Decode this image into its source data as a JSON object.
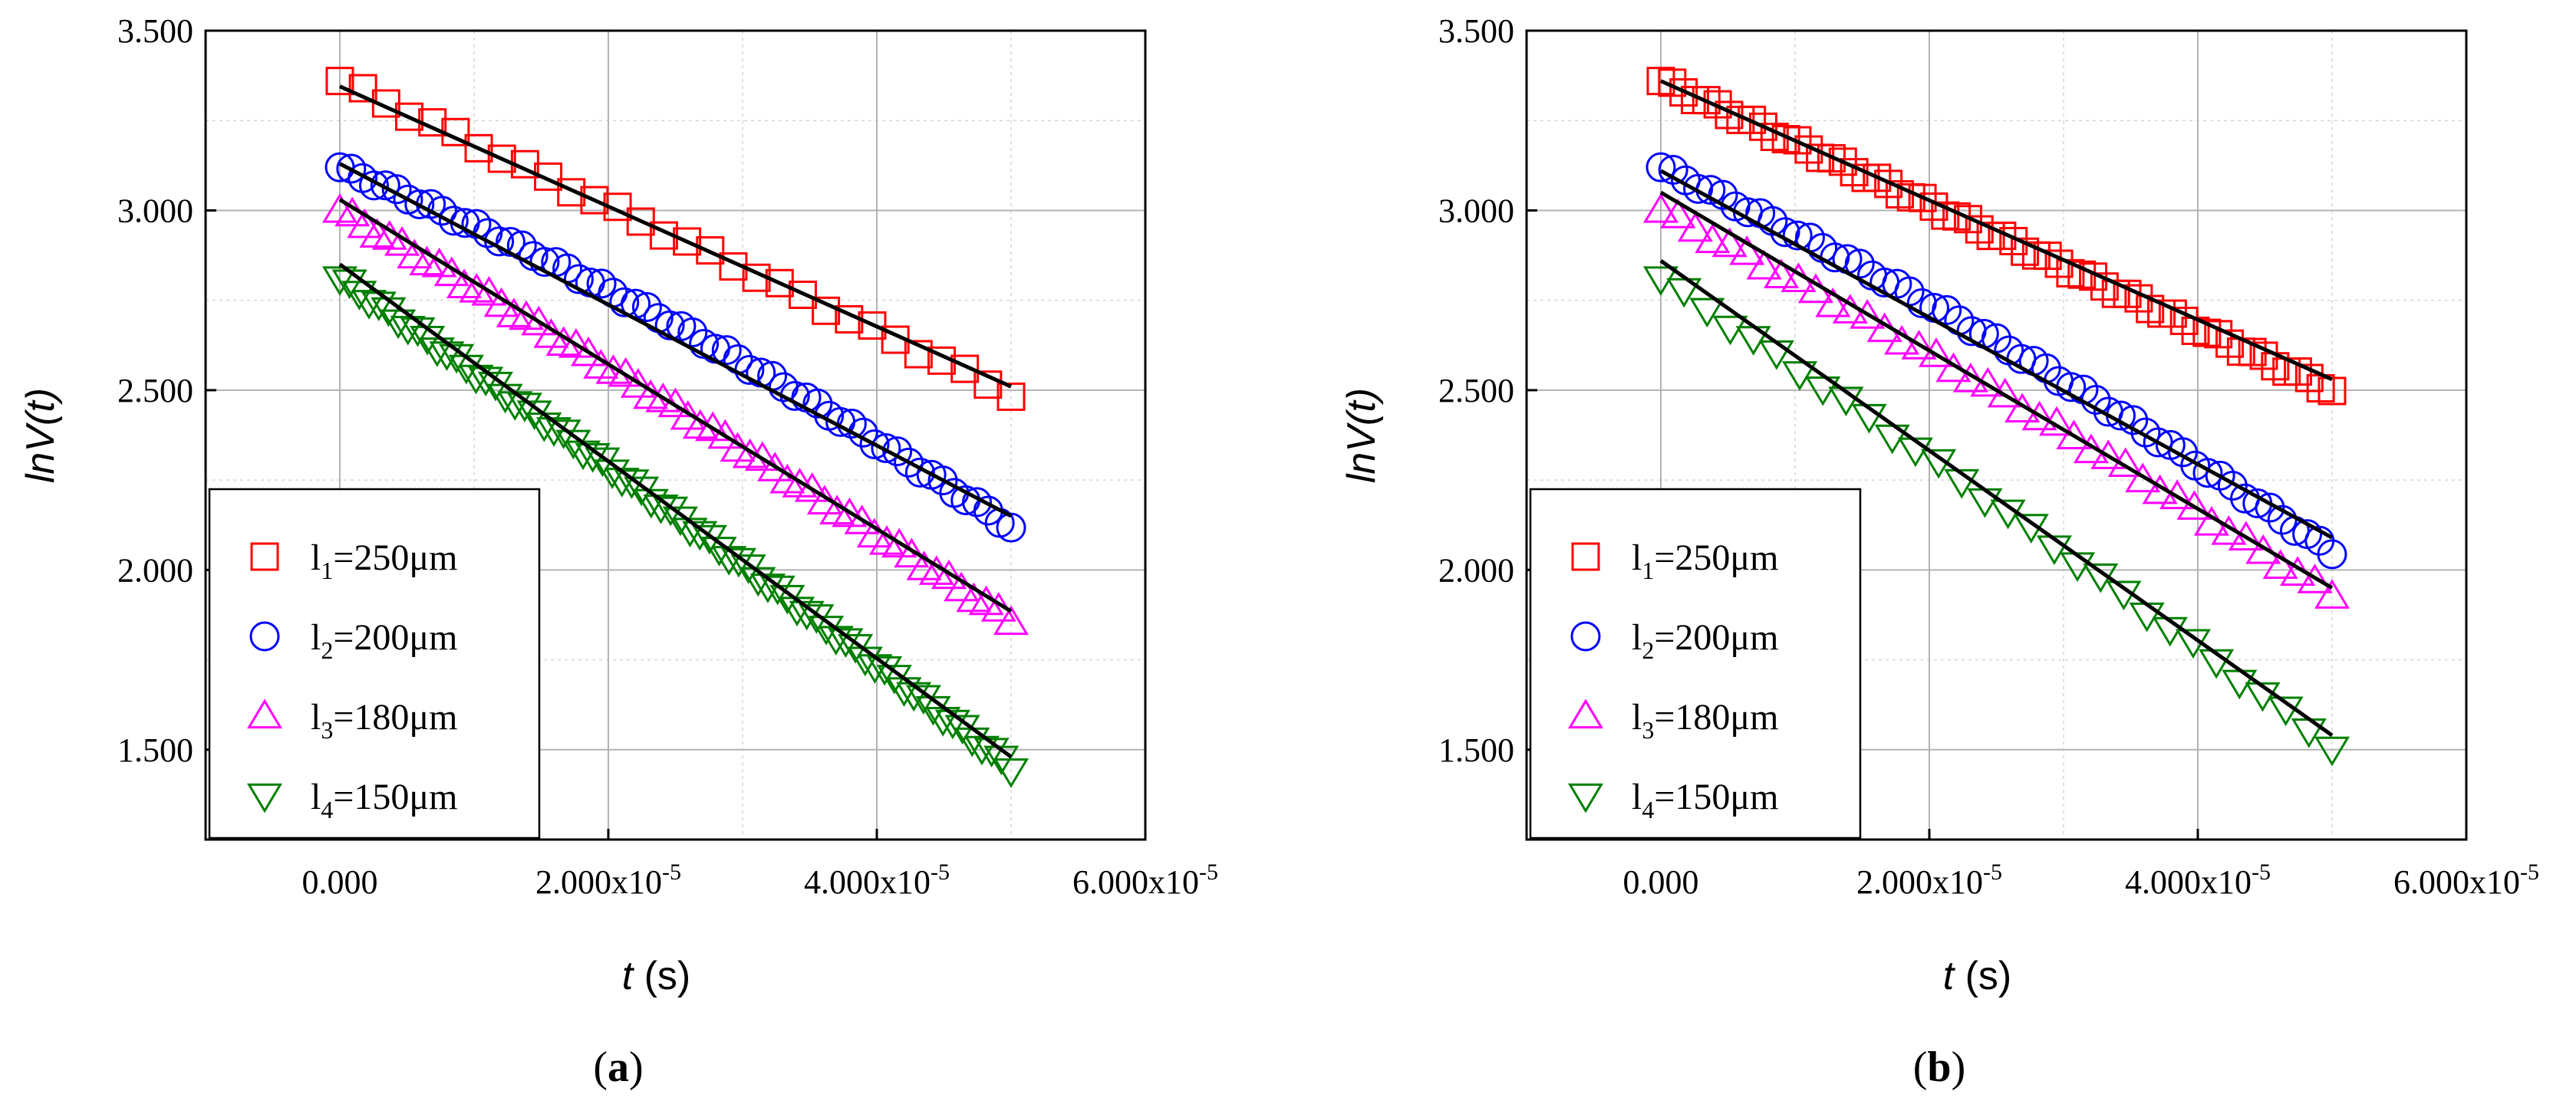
{
  "colors": {
    "l1": "#ff0000",
    "l2": "#0000ff",
    "l3": "#ff00ff",
    "l4": "#008000",
    "fit": "#000000"
  },
  "chart_data": [
    {
      "type": "scatter",
      "panel": "a",
      "panel_label": "(a)",
      "xlabel_var": "t",
      "xlabel_unit": " (s)",
      "ylabel": "lnV(t)",
      "xlim": [
        -1e-05,
        6e-05
      ],
      "ylim": [
        1.25,
        3.5
      ],
      "x_ticks": [
        0,
        2e-05,
        4e-05,
        6e-05
      ],
      "x_tick_mantissa": [
        "0.000",
        "2.000x10",
        "4.000x10",
        "6.000x10"
      ],
      "x_tick_exponent": [
        "",
        "-5",
        "-5",
        "-5"
      ],
      "y_ticks": [
        1.5,
        2.0,
        2.5,
        3.0,
        3.5
      ],
      "y_tick_labels": [
        "1.500",
        "2.000",
        "2.500",
        "3.000",
        "3.500"
      ],
      "legend": [
        {
          "sym": "l",
          "sub": "1",
          "rest": "=250μm",
          "marker": "square",
          "color": "#ff0000"
        },
        {
          "sym": "l",
          "sub": "2",
          "rest": "=200μm",
          "marker": "circle",
          "color": "#0000ff"
        },
        {
          "sym": "l",
          "sub": "3",
          "rest": "=180μm",
          "marker": "triangle-up",
          "color": "#ff00ff"
        },
        {
          "sym": "l",
          "sub": "4",
          "rest": "=150μm",
          "marker": "triangle-down",
          "color": "#008000"
        }
      ],
      "series": [
        {
          "name": "l1=250μm",
          "marker": "square",
          "color": "#ff0000",
          "start": 3.36,
          "end": 2.49,
          "bow": 0.0,
          "n": 30,
          "fit": {
            "x": [
              0,
              5e-05
            ],
            "y": [
              3.345,
              2.51
            ]
          }
        },
        {
          "name": "l2=200μm",
          "marker": "circle",
          "color": "#0000ff",
          "start": 3.12,
          "end": 2.12,
          "bow": 0.06,
          "n": 60,
          "fit": {
            "x": [
              0,
              5e-05
            ],
            "y": [
              3.13,
              2.15
            ]
          }
        },
        {
          "name": "l3=180μm",
          "marker": "triangle-up",
          "color": "#ff00ff",
          "start": 3.0,
          "end": 1.86,
          "bow": 0.02,
          "n": 55,
          "fit": {
            "x": [
              0,
              5e-05
            ],
            "y": [
              3.03,
              1.885
            ]
          }
        },
        {
          "name": "l4=150μm",
          "marker": "triangle-down",
          "color": "#008000",
          "start": 2.81,
          "end": 1.45,
          "bow": 0.02,
          "n": 70,
          "fit": {
            "x": [
              0,
              5e-05
            ],
            "y": [
              2.85,
              1.48
            ]
          }
        }
      ]
    },
    {
      "type": "scatter",
      "panel": "b",
      "panel_label": "(b)",
      "xlabel_var": "t",
      "xlabel_unit": " (s)",
      "ylabel": "lnV(t)",
      "xlim": [
        -1e-05,
        6e-05
      ],
      "ylim": [
        1.25,
        3.5
      ],
      "x_ticks": [
        0,
        2e-05,
        4e-05,
        6e-05
      ],
      "x_tick_mantissa": [
        "0.000",
        "2.000x10",
        "4.000x10",
        "6.000x10"
      ],
      "x_tick_exponent": [
        "",
        "-5",
        "-5",
        "-5"
      ],
      "y_ticks": [
        1.5,
        2.0,
        2.5,
        3.0,
        3.5
      ],
      "y_tick_labels": [
        "1.500",
        "2.000",
        "2.500",
        "3.000",
        "3.500"
      ],
      "legend": [
        {
          "sym": "l",
          "sub": "1",
          "rest": "=250μm",
          "marker": "square",
          "color": "#ff0000"
        },
        {
          "sym": "l",
          "sub": "2",
          "rest": "=200μm",
          "marker": "circle",
          "color": "#0000ff"
        },
        {
          "sym": "l",
          "sub": "3",
          "rest": "=180μm",
          "marker": "triangle-up",
          "color": "#ff00ff"
        },
        {
          "sym": "l",
          "sub": "4",
          "rest": "=150μm",
          "marker": "triangle-down",
          "color": "#008000"
        }
      ],
      "series": [
        {
          "name": "l1=250μm",
          "marker": "square",
          "color": "#ff0000",
          "start": 3.36,
          "end": 2.5,
          "bow": 0.0,
          "n": 60,
          "fit": {
            "x": [
              0,
              5e-05
            ],
            "y": [
              3.36,
              2.53
            ]
          }
        },
        {
          "name": "l2=200μm",
          "marker": "circle",
          "color": "#0000ff",
          "start": 3.12,
          "end": 2.05,
          "bow": 0.05,
          "n": 55,
          "fit": {
            "x": [
              0,
              5e-05
            ],
            "y": [
              3.11,
              2.09
            ]
          }
        },
        {
          "name": "l3=180μm",
          "marker": "triangle-up",
          "color": "#ff00ff",
          "start": 3.0,
          "end": 1.93,
          "bow": 0.03,
          "n": 40,
          "fit": {
            "x": [
              0,
              5e-05
            ],
            "y": [
              3.05,
              1.95
            ]
          }
        },
        {
          "name": "l4=150μm",
          "marker": "triangle-down",
          "color": "#008000",
          "start": 2.81,
          "end": 1.51,
          "bow": 0.02,
          "n": 30,
          "fit": {
            "x": [
              0,
              5e-05
            ],
            "y": [
              2.86,
              1.54
            ]
          }
        }
      ]
    }
  ]
}
